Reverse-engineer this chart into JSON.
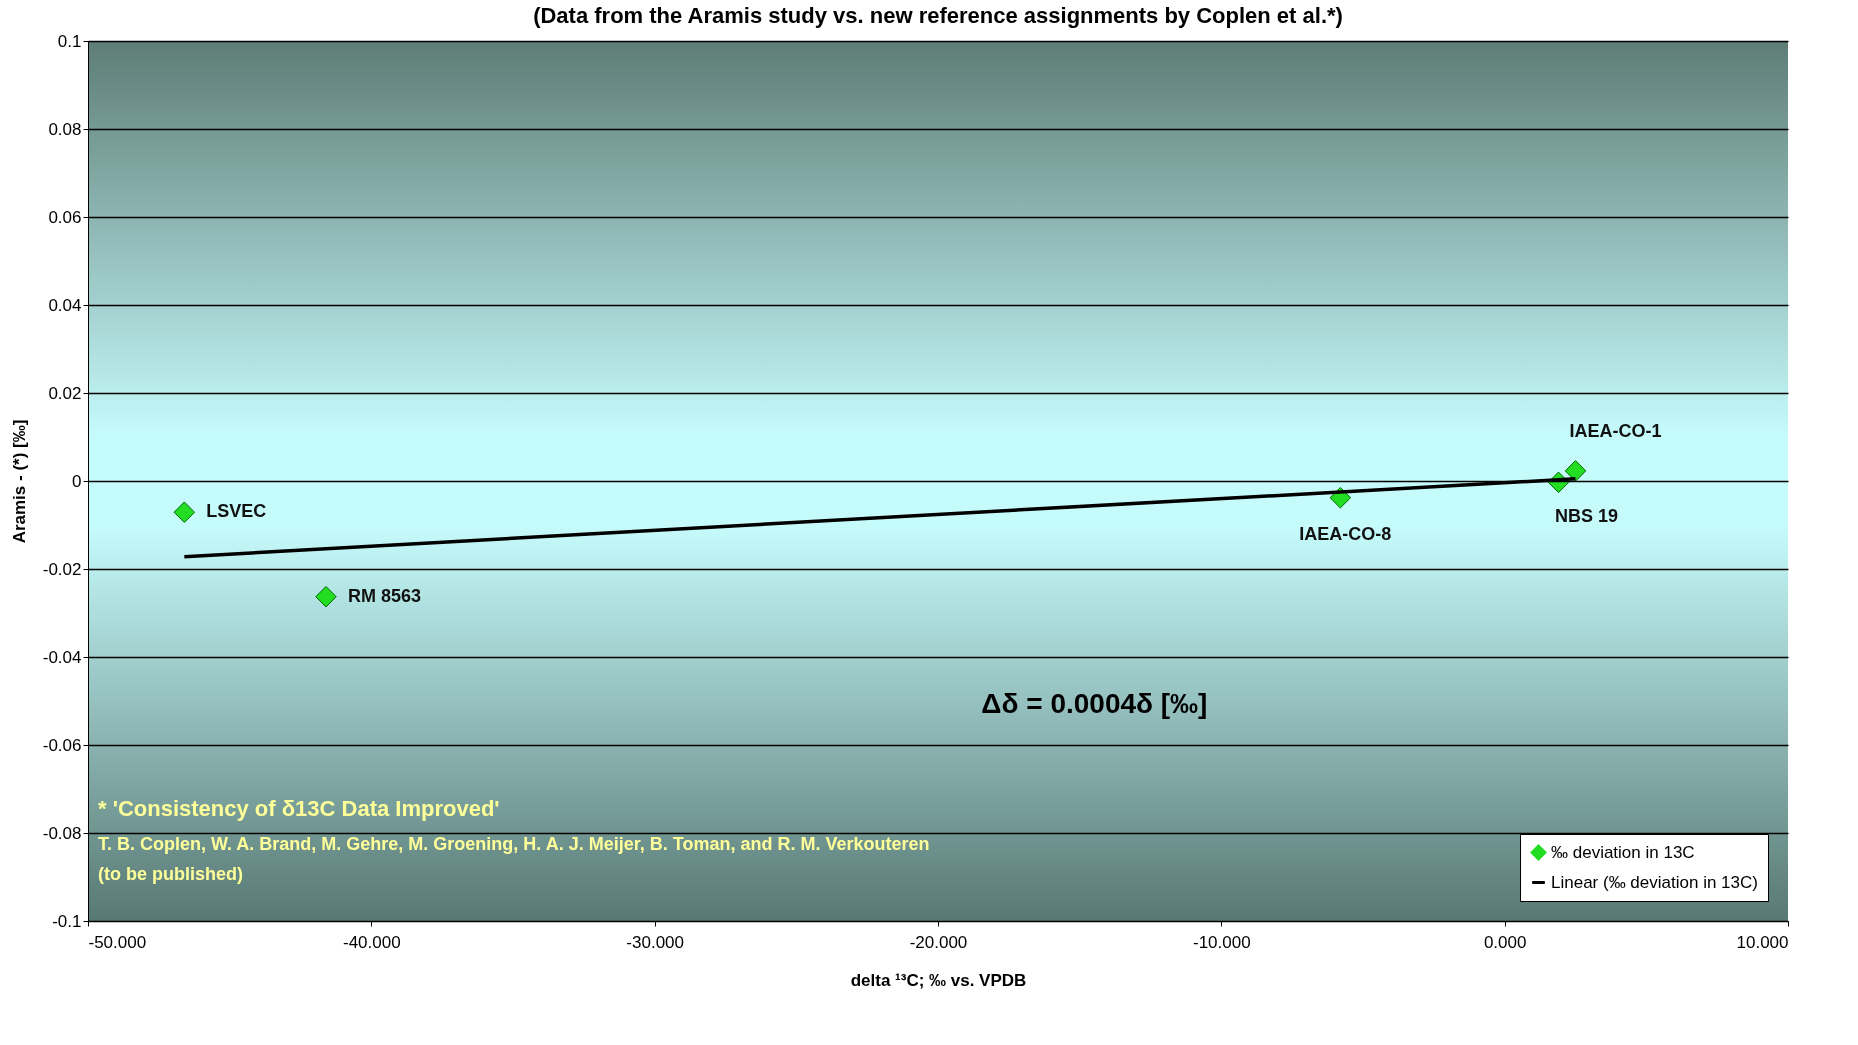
{
  "chart_data": {
    "type": "scatter",
    "title": "(Data from the Aramis study vs. new reference assignments by Coplen et al.*)",
    "xlabel": "delta ¹³C; ‰ vs. VPDB",
    "ylabel": "Aramis - (*)  [‰]",
    "xlim": [
      -50,
      10
    ],
    "xticks": [
      {
        "value": -50,
        "label": "-50.000"
      },
      {
        "value": -40,
        "label": "-40.000"
      },
      {
        "value": -30,
        "label": "-30.000"
      },
      {
        "value": -20,
        "label": "-20.000"
      },
      {
        "value": -10,
        "label": "-10.000"
      },
      {
        "value": 0,
        "label": "0.000"
      },
      {
        "value": 10,
        "label": "10.000"
      }
    ],
    "ylim": [
      -0.1,
      0.1
    ],
    "yticks": [
      -0.1,
      -0.08,
      -0.06,
      -0.04,
      -0.02,
      0,
      0.02,
      0.04,
      0.06,
      0.08,
      0.1
    ],
    "grid": "y",
    "legend": "bottom right",
    "marker": "diamond",
    "series": [
      {
        "name": "‰ deviation in 13C",
        "color": "#22dd22",
        "x": [
          -46.6,
          -41.6,
          -5.8,
          1.9,
          2.5
        ],
        "values": [
          -0.0071,
          -0.0263,
          -0.0038,
          -0.0003,
          0.0023
        ]
      },
      {
        "name": "Linear (‰ deviation in 13C)",
        "type": "line",
        "color": "#000000",
        "line_style": "solid",
        "marker": "none",
        "x": [
          -46.6,
          2.5
        ],
        "values": [
          -0.0172,
          0.0005
        ]
      }
    ],
    "annotations": [
      {
        "text": "LSVEC",
        "x": -46.6,
        "y": -0.0071
      },
      {
        "text": "RM 8563",
        "x": -41.6,
        "y": -0.0263
      },
      {
        "text": "IAEA-CO-8",
        "x": -5.8,
        "y": -0.0038
      },
      {
        "text": "NBS 19",
        "x": 1.9,
        "y": -0.0003
      },
      {
        "text": "IAEA-CO-1",
        "x": 2.5,
        "y": 0.0023
      },
      "Δδ = 0.0004δ [‰]",
      "* 'Consistency of δ13C Data Improved'",
      "T. B. Coplen, W. A. Brand, M. Gehre, M. Groening, H. A. J. Meijer, B. Toman, and R. M. Verkouteren",
      "(to be published)"
    ]
  }
}
